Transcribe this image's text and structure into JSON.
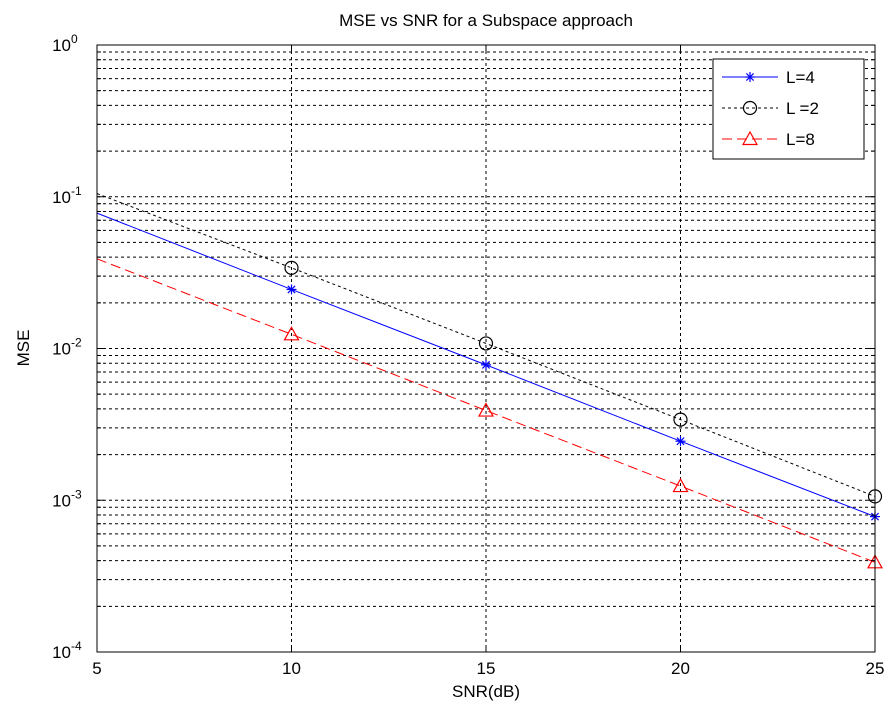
{
  "chart_data": {
    "type": "line",
    "title": "MSE vs SNR for a Subspace approach",
    "xlabel": "SNR(dB)",
    "ylabel": "MSE",
    "xlim": [
      5,
      25
    ],
    "ylim": [
      0.0001,
      1
    ],
    "yscale": "log",
    "grid": true,
    "legend_position": "top-right",
    "x_ticks": [
      5,
      10,
      15,
      20,
      25
    ],
    "y_ticks": [
      {
        "value": 0.0001,
        "mantissa": "10",
        "exp": "-4"
      },
      {
        "value": 0.001,
        "mantissa": "10",
        "exp": "-3"
      },
      {
        "value": 0.01,
        "mantissa": "10",
        "exp": "-2"
      },
      {
        "value": 0.1,
        "mantissa": "10",
        "exp": "-1"
      },
      {
        "value": 1,
        "mantissa": "10",
        "exp": "0"
      }
    ],
    "series": [
      {
        "name": "L=4",
        "color": "#0000ff",
        "line_style": "solid",
        "marker": "asterisk",
        "line_x": [
          5,
          10,
          15,
          20,
          25
        ],
        "line_y": [
          0.078,
          0.0245,
          0.0078,
          0.00245,
          0.00078
        ],
        "marker_x": [
          10,
          15,
          20,
          25
        ],
        "marker_y": [
          0.0245,
          0.0078,
          0.00245,
          0.00078
        ]
      },
      {
        "name": "L =2",
        "color": "#000000",
        "line_style": "dotted",
        "marker": "circle",
        "line_x": [
          5,
          10,
          15,
          20,
          25
        ],
        "line_y": [
          0.105,
          0.034,
          0.0108,
          0.0034,
          0.00106
        ],
        "marker_x": [
          10,
          15,
          20,
          25
        ],
        "marker_y": [
          0.034,
          0.0108,
          0.0034,
          0.00106
        ]
      },
      {
        "name": "L=8",
        "color": "#ff0000",
        "line_style": "dashed",
        "marker": "triangle",
        "line_x": [
          5,
          10,
          15,
          20,
          25
        ],
        "line_y": [
          0.039,
          0.0124,
          0.0039,
          0.00124,
          0.00039
        ],
        "marker_x": [
          10,
          15,
          20,
          25
        ],
        "marker_y": [
          0.0124,
          0.0039,
          0.00124,
          0.00039
        ]
      }
    ]
  }
}
